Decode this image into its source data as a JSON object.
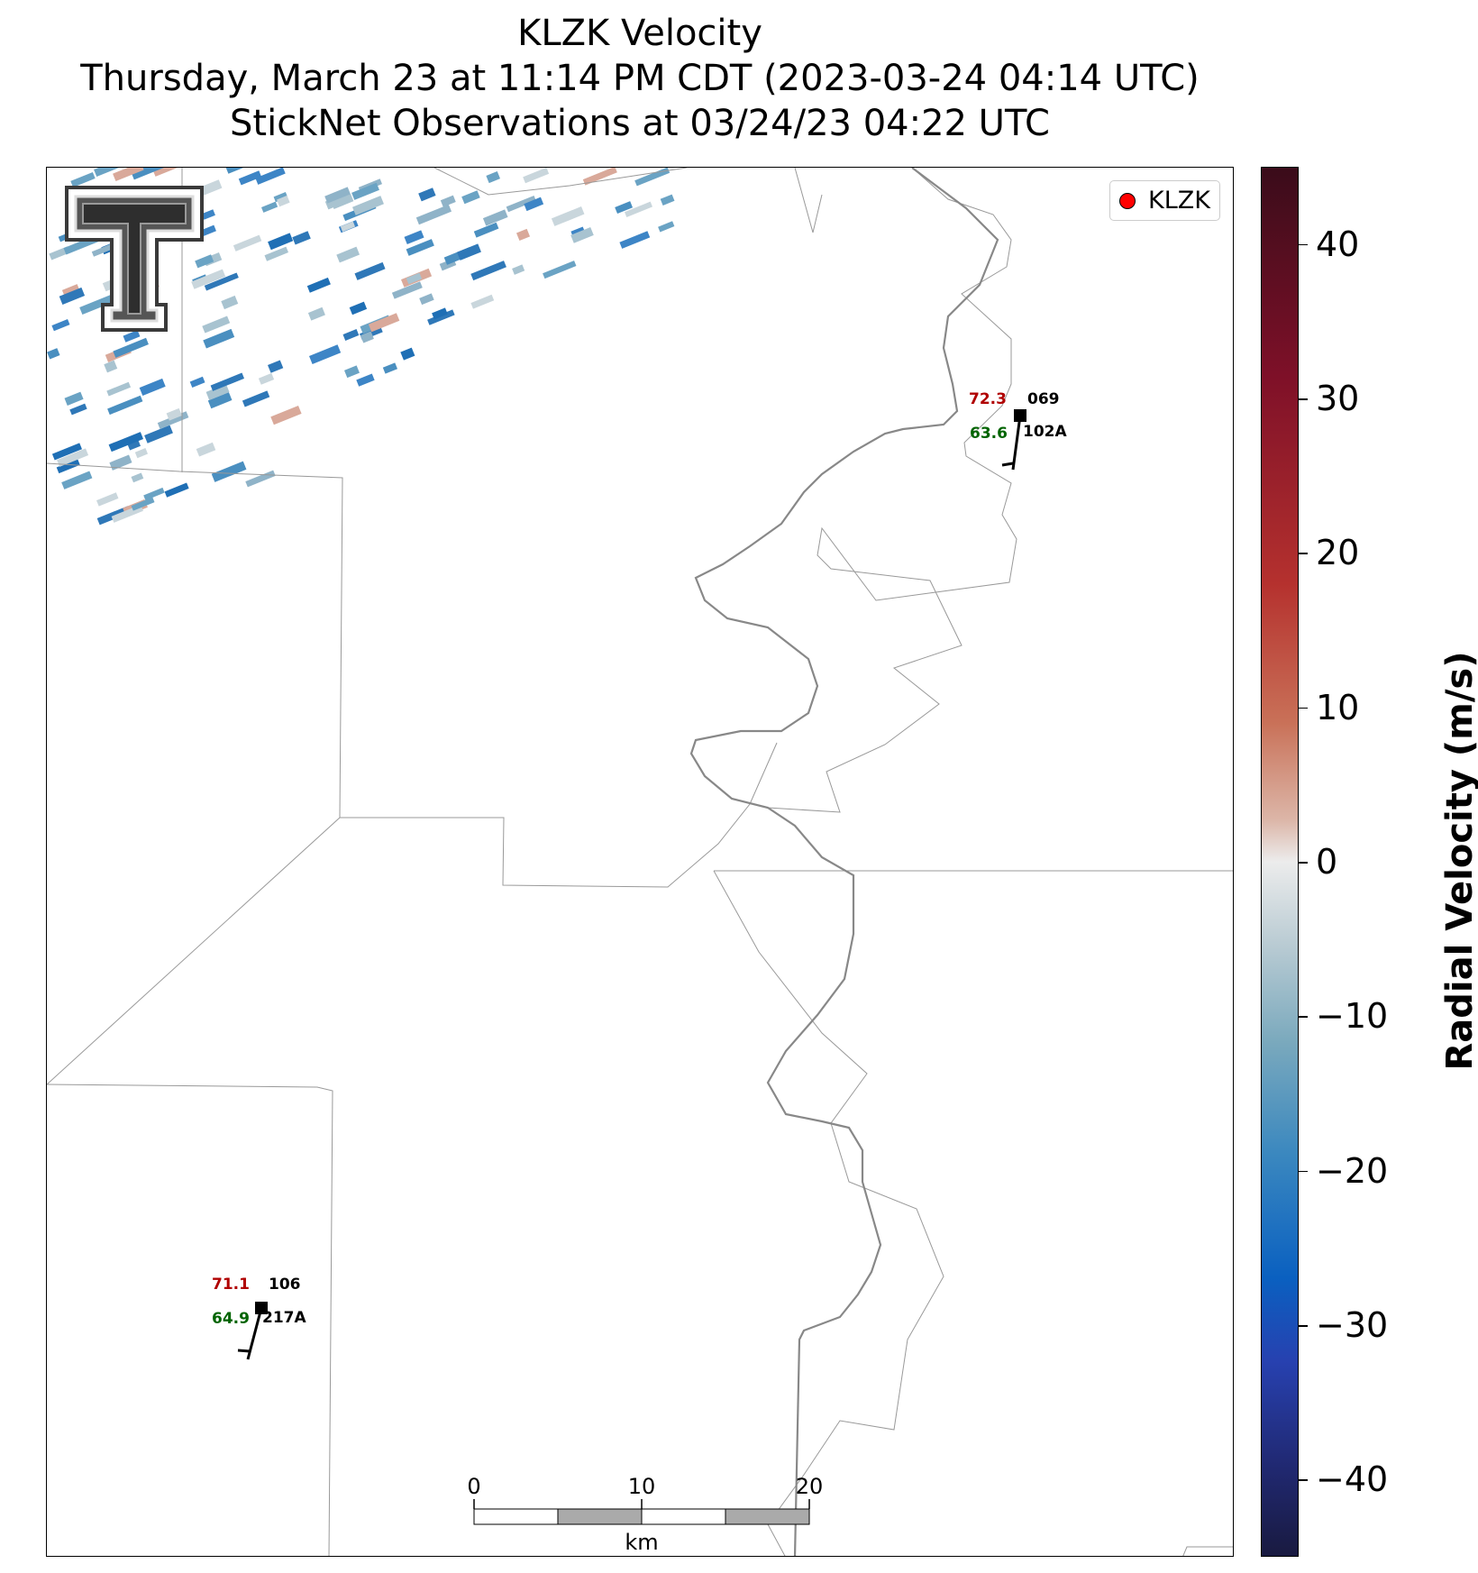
{
  "title": {
    "line1": "KLZK Velocity",
    "line2": "Thursday, March 23 at 11:14 PM CDT (2023-03-24 04:14 UTC)",
    "line3": "StickNet Observations at 03/24/23 04:22 UTC"
  },
  "legend": {
    "label": "KLZK",
    "marker_color": "#ff0000"
  },
  "colorbar": {
    "label": "Radial Velocity (m/s)",
    "ticks": [
      "40",
      "30",
      "20",
      "10",
      "0",
      "−10",
      "−20",
      "−30",
      "−40"
    ],
    "range": [
      -45,
      45
    ]
  },
  "stations": [
    {
      "temp": "72.3",
      "dewpoint": "63.6",
      "pressure": "069",
      "id": "102A"
    },
    {
      "temp": "71.1",
      "dewpoint": "64.9",
      "pressure": "106",
      "id": "217A"
    }
  ],
  "scale_bar": {
    "labels": [
      "0",
      "10",
      "20"
    ],
    "unit": "km"
  },
  "logo": {
    "name": "Texas Tech Double T"
  },
  "colors": {
    "temp": "#b00000",
    "dewpoint": "#006400",
    "border": "#999999",
    "river": "#888888"
  }
}
